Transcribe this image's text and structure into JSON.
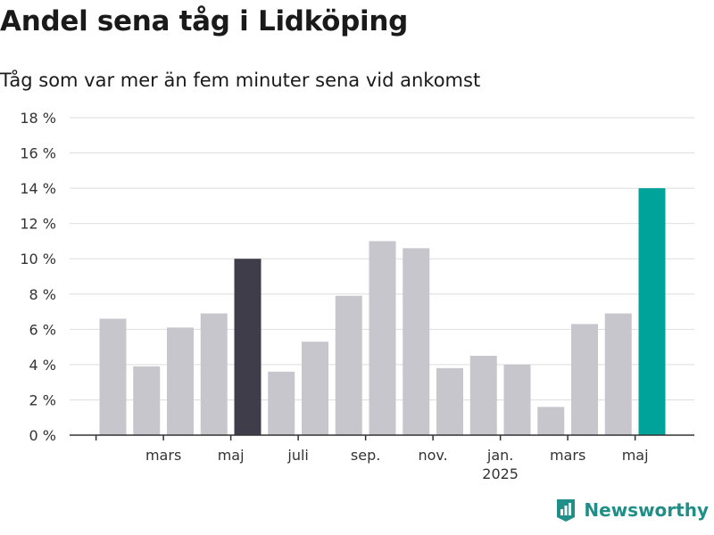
{
  "title": "Andel sena tåg i Lidköping",
  "subtitle": "Tåg som var mer än fem minuter sena vid ankomst",
  "brand": "Newsworthy",
  "colors": {
    "bar": "#c7c6cc",
    "highlight_dark": "#3e3d49",
    "highlight_accent": "#00a39a",
    "grid": "#dedede",
    "axis": "#333333",
    "brand": "#1f8f87"
  },
  "chart_data": {
    "type": "bar",
    "title": "Andel sena tåg i Lidköping",
    "subtitle": "Tåg som var mer än fem minuter sena vid ankomst",
    "ylim": [
      0,
      18
    ],
    "yticks": [
      0,
      2,
      4,
      6,
      8,
      10,
      12,
      14,
      16,
      18
    ],
    "ytick_labels": [
      "0 %",
      "2 %",
      "4 %",
      "6 %",
      "8 %",
      "10 %",
      "12 %",
      "14 %",
      "16 %",
      "18 %"
    ],
    "values": [
      6.6,
      3.9,
      6.1,
      6.9,
      10.0,
      3.6,
      5.3,
      7.9,
      11.0,
      10.6,
      3.8,
      4.5,
      4.0,
      1.6,
      6.3,
      6.9,
      14.0
    ],
    "bar_highlight": [
      "",
      "",
      "",
      "",
      "dark",
      "",
      "",
      "",
      "",
      "",
      "",
      "",
      "",
      "",
      "",
      "",
      "accent"
    ],
    "xtick_labels": [
      {
        "bar_index": 1.5,
        "label": "mars"
      },
      {
        "bar_index": 3.5,
        "label": "maj"
      },
      {
        "bar_index": 5.5,
        "label": "juli"
      },
      {
        "bar_index": 7.5,
        "label": "sep."
      },
      {
        "bar_index": 9.5,
        "label": "nov."
      },
      {
        "bar_index": 11.5,
        "label": "jan."
      },
      {
        "bar_index": 13.5,
        "label": "mars"
      },
      {
        "bar_index": 15.5,
        "label": "maj"
      }
    ],
    "year_labels": [
      {
        "bar_index": 11.5,
        "label": "2025"
      }
    ],
    "grid": true,
    "legend": "none"
  }
}
